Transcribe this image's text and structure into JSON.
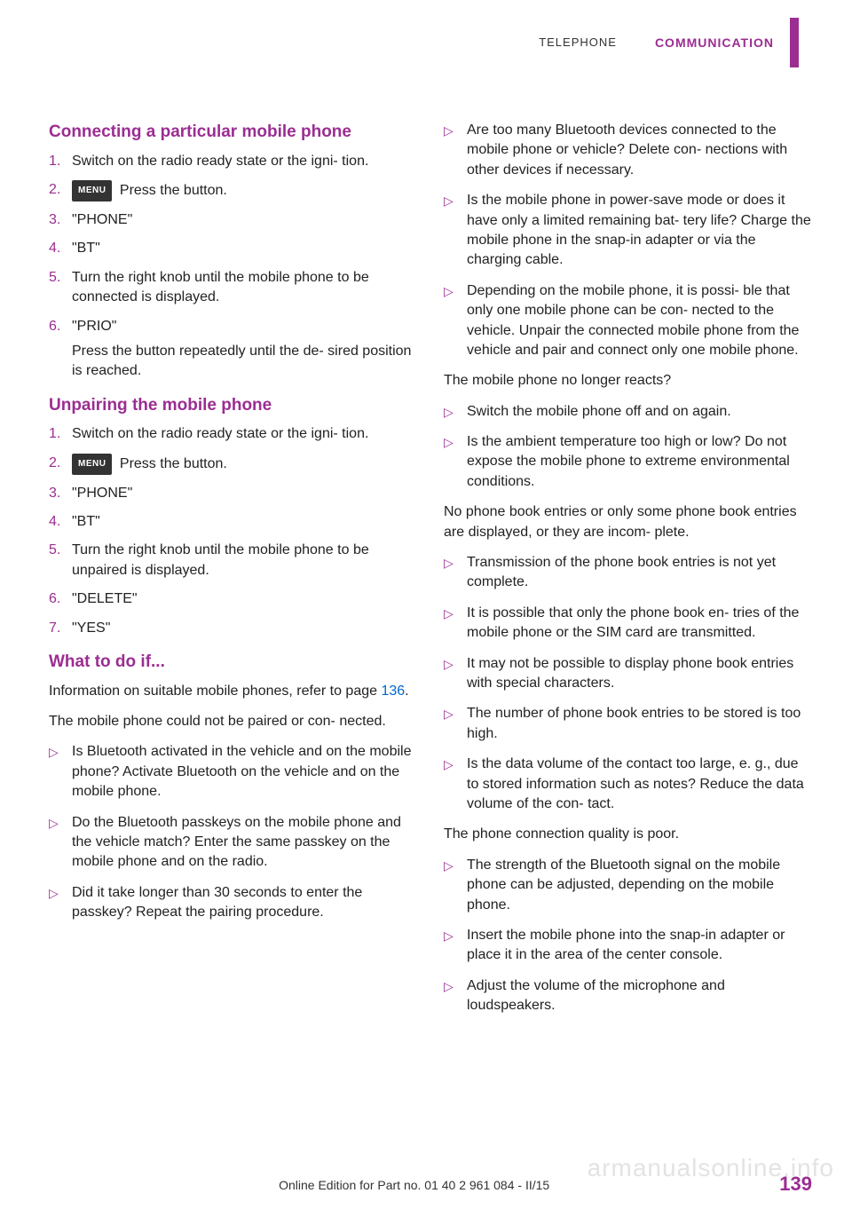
{
  "header": {
    "left": "TELEPHONE",
    "right": "COMMUNICATION"
  },
  "section1": {
    "title": "Connecting a particular mobile phone",
    "items": [
      {
        "num": "1.",
        "text": "Switch on the radio ready state or the igni‐\ntion."
      },
      {
        "num": "2.",
        "icon": "MENU",
        "text": " Press the button."
      },
      {
        "num": "3.",
        "text": "\"PHONE\""
      },
      {
        "num": "4.",
        "text": "\"BT\""
      },
      {
        "num": "5.",
        "text": "Turn the right knob until the mobile phone to be connected is displayed."
      },
      {
        "num": "6.",
        "text": "\"PRIO\""
      }
    ],
    "subtext": "Press the button repeatedly until the de‐\nsired position is reached."
  },
  "section2": {
    "title": "Unpairing the mobile phone",
    "items": [
      {
        "num": "1.",
        "text": "Switch on the radio ready state or the igni‐\ntion."
      },
      {
        "num": "2.",
        "icon": "MENU",
        "text": " Press the button."
      },
      {
        "num": "3.",
        "text": "\"PHONE\""
      },
      {
        "num": "4.",
        "text": "\"BT\""
      },
      {
        "num": "5.",
        "text": "Turn the right knob until the mobile phone to be unpaired is displayed."
      },
      {
        "num": "6.",
        "text": "\"DELETE\""
      },
      {
        "num": "7.",
        "text": "\"YES\""
      }
    ]
  },
  "section3": {
    "title": "What to do if...",
    "intro_a": "Information on suitable mobile phones, refer to page ",
    "intro_link": "136",
    "intro_b": ".",
    "para1": "The mobile phone could not be paired or con‐\nnected.",
    "bullets1": [
      "Is Bluetooth activated in the vehicle and on the mobile phone? Activate Bluetooth on the vehicle and on the mobile phone.",
      "Do the Bluetooth passkeys on the mobile phone and the vehicle match? Enter the same passkey on the mobile phone and on the radio.",
      "Did it take longer than 30 seconds to enter the passkey? Repeat the pairing procedure."
    ]
  },
  "rightcol": {
    "bullets1": [
      "Are too many Bluetooth devices connected to the mobile phone or vehicle? Delete con‐\nnections with other devices if necessary.",
      "Is the mobile phone in power-save mode or does it have only a limited remaining bat‐\ntery life? Charge the mobile phone in the snap-in adapter or via the charging cable.",
      "Depending on the mobile phone, it is possi‐\nble that only one mobile phone can be con‐\nnected to the vehicle. Unpair the connected mobile phone from the vehicle and pair and connect only one mobile phone."
    ],
    "para1": "The mobile phone no longer reacts?",
    "bullets2": [
      "Switch the mobile phone off and on again.",
      "Is the ambient temperature too high or low? Do not expose the mobile phone to extreme environmental conditions."
    ],
    "para2": "No phone book entries or only some phone book entries are displayed, or they are incom‐\nplete.",
    "bullets3": [
      "Transmission of the phone book entries is not yet complete.",
      "It is possible that only the phone book en‐\ntries of the mobile phone or the SIM card are transmitted.",
      "It may not be possible to display phone book entries with special characters.",
      "The number of phone book entries to be stored is too high.",
      "Is the data volume of the contact too large, e. g., due to stored information such as notes? Reduce the data volume of the con‐\ntact."
    ],
    "para3": "The phone connection quality is poor.",
    "bullets4": [
      "The strength of the Bluetooth signal on the mobile phone can be adjusted, depending on the mobile phone.",
      "Insert the mobile phone into the snap-in adapter or place it in the area of the center console.",
      "Adjust the volume of the microphone and loudspeakers."
    ]
  },
  "footer": {
    "center": "Online Edition for Part no. 01 40 2 961 084 - II/15",
    "page": "139"
  },
  "watermark": "armanualsonline.info"
}
